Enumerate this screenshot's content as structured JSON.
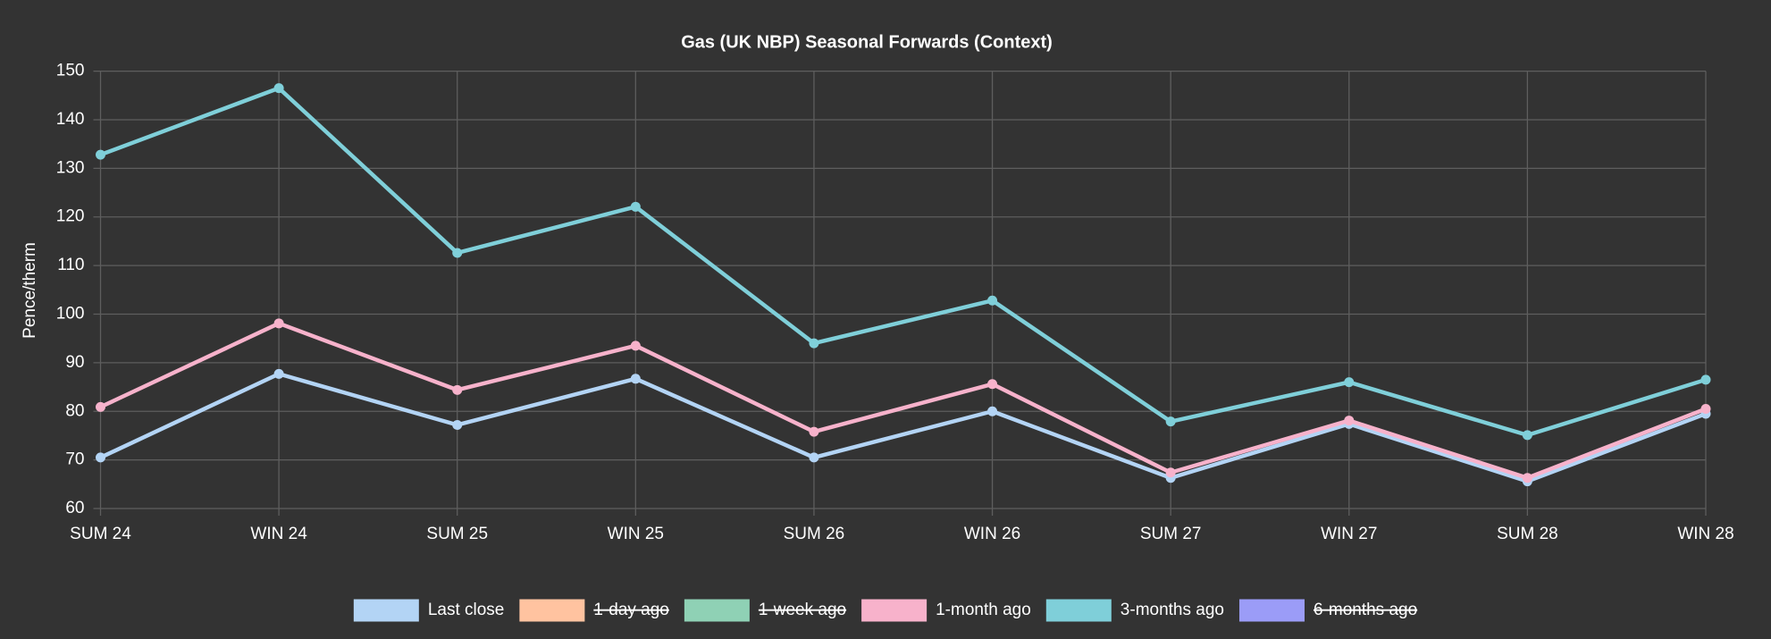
{
  "chart_data": {
    "type": "line",
    "title": "Gas (UK NBP) Seasonal Forwards (Context)",
    "y_label": "Pence/therm",
    "categories": [
      "SUM 24",
      "WIN 24",
      "SUM 25",
      "WIN 25",
      "SUM 26",
      "WIN 26",
      "SUM 27",
      "WIN 27",
      "SUM 28",
      "WIN 28"
    ],
    "series": [
      {
        "name": "Last close",
        "color": "#b3d4f5",
        "hidden": false,
        "values": [
          70.5,
          87.7,
          77.2,
          86.7,
          70.5,
          80,
          66.3,
          77.4,
          65.6,
          79.5
        ]
      },
      {
        "name": "1-day ago",
        "color": "#ffc3a0",
        "hidden": true,
        "values": [
          null,
          null,
          null,
          null,
          null,
          null,
          null,
          null,
          null,
          null
        ]
      },
      {
        "name": "1-week ago",
        "color": "#8fd1b5",
        "hidden": true,
        "values": [
          null,
          null,
          null,
          null,
          null,
          null,
          null,
          null,
          null,
          null
        ]
      },
      {
        "name": "1-month ago",
        "color": "#f7b2cb",
        "hidden": false,
        "values": [
          80.9,
          98.1,
          84.4,
          93.5,
          75.8,
          85.6,
          67.4,
          78.1,
          66.3,
          80.5
        ]
      },
      {
        "name": "3-months ago",
        "color": "#7fcfd9",
        "hidden": false,
        "values": [
          132.8,
          146.5,
          112.6,
          122.1,
          94,
          102.8,
          77.9,
          86,
          75.1,
          86.5
        ]
      },
      {
        "name": "6-months ago",
        "color": "#9b9cf7",
        "hidden": true,
        "values": [
          null,
          null,
          null,
          null,
          null,
          null,
          null,
          null,
          null,
          null
        ]
      }
    ],
    "ylim": [
      60,
      150
    ],
    "yticks": [
      60,
      70,
      80,
      90,
      100,
      110,
      120,
      130,
      140,
      150
    ],
    "grid": true,
    "legend": "bottom"
  }
}
